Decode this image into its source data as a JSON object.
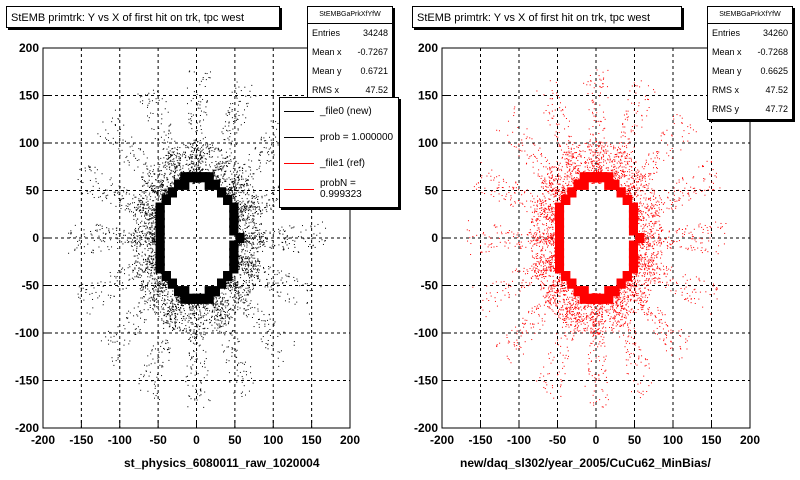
{
  "panels": [
    {
      "title": "StEMB primtrk: Y vs X of first hit on trk, tpc west",
      "stats": {
        "name": "StEMBGaPrkXfYfW",
        "rows": [
          {
            "label": "Entries",
            "value": "34248"
          },
          {
            "label": "Mean x",
            "value": "-0.7267"
          },
          {
            "label": "Mean y",
            "value": "0.6721"
          },
          {
            "label": "RMS x",
            "value": "47.52"
          }
        ]
      },
      "xlabel": "st_physics_6080011_raw_1020004",
      "color": "#000000"
    },
    {
      "title": "StEMB primtrk: Y vs X of first hit on trk, tpc west",
      "stats": {
        "name": "StEMBGaPrkXfYfW",
        "rows": [
          {
            "label": "Entries",
            "value": "34260"
          },
          {
            "label": "Mean x",
            "value": "-0.7268"
          },
          {
            "label": "Mean y",
            "value": "0.6625"
          },
          {
            "label": "RMS x",
            "value": "47.52"
          },
          {
            "label": "RMS y",
            "value": "47.72"
          }
        ]
      },
      "xlabel": "new/daq_sl302/year_2005/CuCu62_MinBias/",
      "color": "#ff0000"
    }
  ],
  "legend": [
    {
      "label": "_file0 (new)",
      "color": "#000000"
    },
    {
      "label": "prob = 1.000000",
      "color": "#000000"
    },
    {
      "label": "_file1 (ref)",
      "color": "#ff0000"
    },
    {
      "label": "probN = 0.999323",
      "color": "#ff0000"
    }
  ],
  "footer": "... ",
  "chart_data": [
    {
      "type": "scatter",
      "title": "StEMB primtrk: Y vs X of first hit on trk, tpc west",
      "xlabel": "st_physics_6080011_raw_1020004",
      "ylabel": "",
      "xlim": [
        -200,
        200
      ],
      "ylim": [
        -200,
        200
      ],
      "xticks": [
        -200,
        -150,
        -100,
        -50,
        0,
        50,
        100,
        150,
        200
      ],
      "yticks": [
        -200,
        -150,
        -100,
        -50,
        0,
        50,
        100,
        150,
        200
      ],
      "grid": true,
      "series": [
        {
          "name": "_file0 (new)",
          "color": "#000000",
          "entries": 34248,
          "mean_x": -0.7267,
          "mean_y": 0.6721,
          "rms_x": 47.52
        }
      ]
    },
    {
      "type": "scatter",
      "title": "StEMB primtrk: Y vs X of first hit on trk, tpc west",
      "xlabel": "new/daq_sl302/year_2005/CuCu62_MinBias/",
      "ylabel": "",
      "xlim": [
        -200,
        200
      ],
      "ylim": [
        -200,
        200
      ],
      "xticks": [
        -200,
        -150,
        -100,
        -50,
        0,
        50,
        100,
        150,
        200
      ],
      "yticks": [
        -200,
        -150,
        -100,
        -50,
        0,
        50,
        100,
        150,
        200
      ],
      "grid": true,
      "series": [
        {
          "name": "_file1 (ref)",
          "color": "#ff0000",
          "entries": 34260,
          "mean_x": -0.7268,
          "mean_y": 0.6625,
          "rms_x": 47.52,
          "rms_y": 47.72
        }
      ]
    }
  ]
}
